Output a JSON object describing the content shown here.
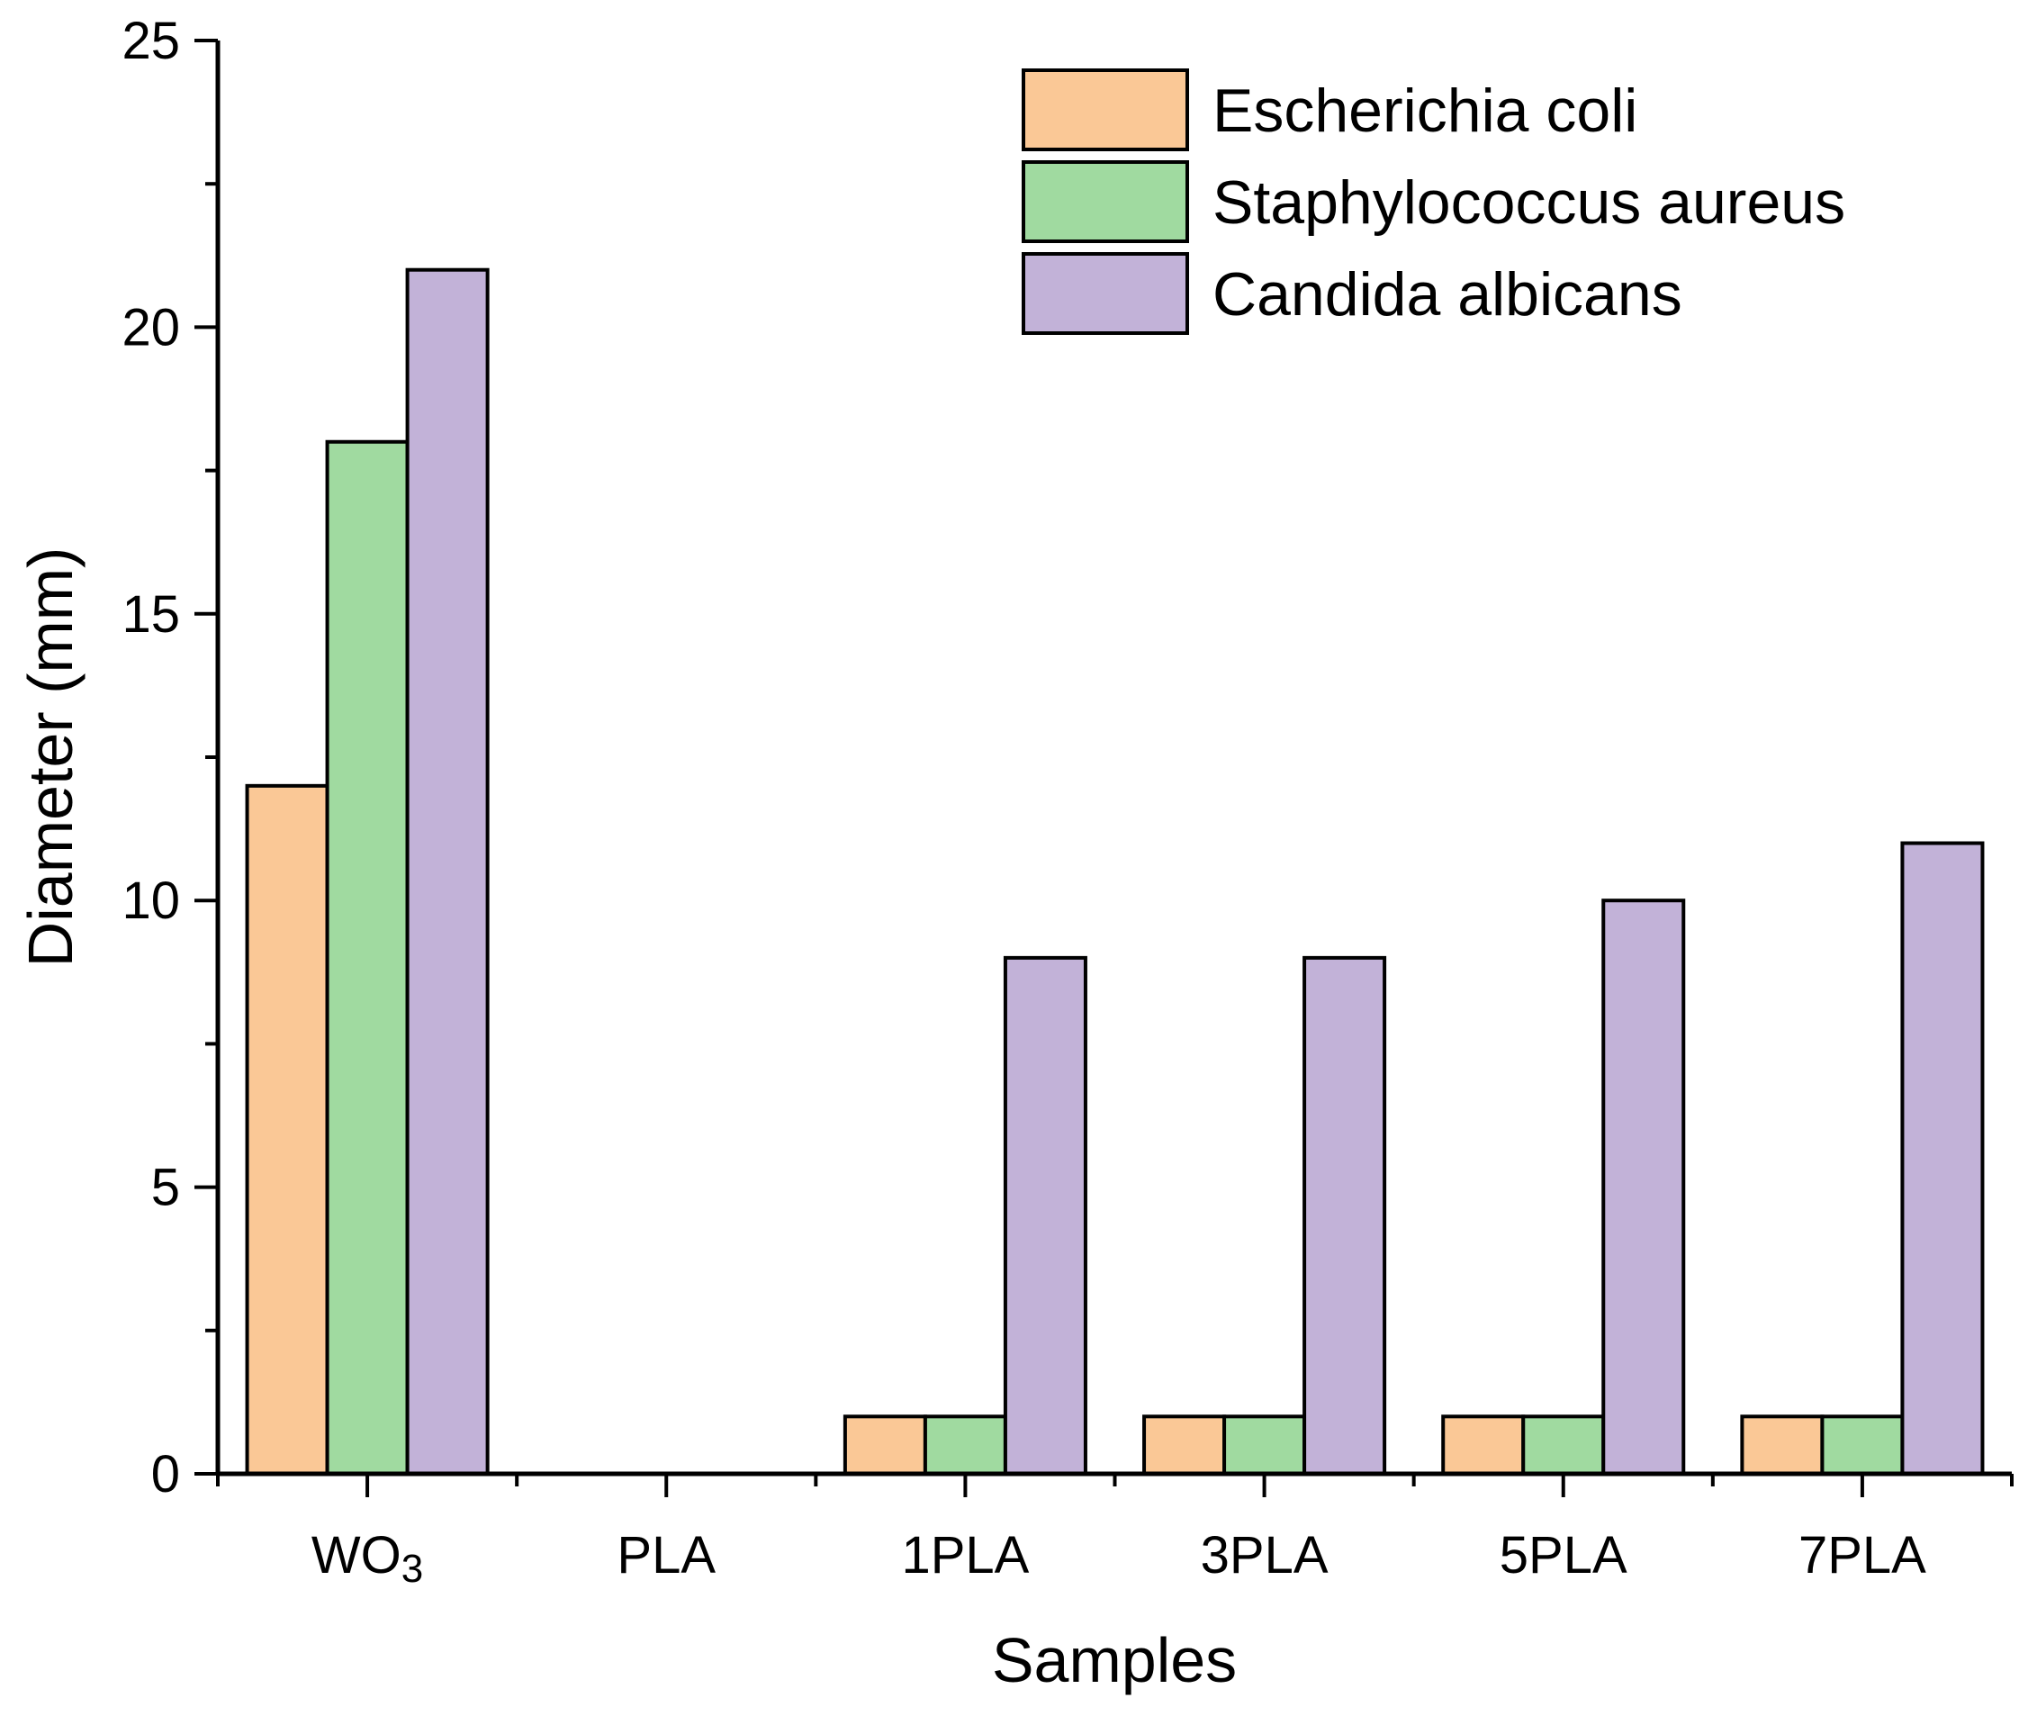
{
  "chart_data": {
    "type": "bar",
    "title": "",
    "xlabel": "Samples",
    "ylabel": "Diameter (mm)",
    "ylim": [
      0,
      25
    ],
    "yticks": [
      0,
      5,
      10,
      15,
      20,
      25
    ],
    "categories": [
      "WO3",
      "PLA",
      "1PLA",
      "3PLA",
      "5PLA",
      "7PLA"
    ],
    "category_labels": [
      {
        "main": "WO",
        "sub": "3"
      },
      {
        "main": "PLA",
        "sub": ""
      },
      {
        "main": "1PLA",
        "sub": ""
      },
      {
        "main": "3PLA",
        "sub": ""
      },
      {
        "main": "5PLA",
        "sub": ""
      },
      {
        "main": "7PLA",
        "sub": ""
      }
    ],
    "series": [
      {
        "name": "Escherichia coli",
        "color": "#FAC896",
        "values": [
          12,
          0,
          1,
          1,
          1,
          1
        ]
      },
      {
        "name": "Staphylococcus aureus",
        "color": "#A0DAA0",
        "values": [
          18,
          0,
          1,
          1,
          1,
          1
        ]
      },
      {
        "name": "Candida albicans",
        "color": "#C2B2D8",
        "values": [
          21,
          0,
          9,
          9,
          10,
          11
        ]
      }
    ],
    "legend_position": "top-right",
    "grid": false
  }
}
